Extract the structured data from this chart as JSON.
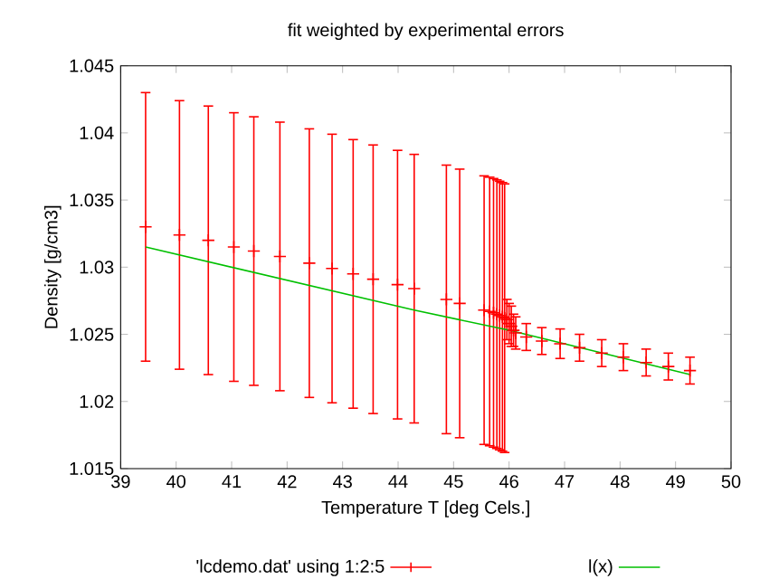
{
  "chart_data": {
    "type": "scatter",
    "title": "fit weighted by experimental errors",
    "xlabel": "Temperature T  [deg Cels.]",
    "ylabel": "Density [g/cm3]",
    "xlim": [
      39,
      50
    ],
    "xticks": [
      39,
      40,
      41,
      42,
      43,
      44,
      45,
      46,
      47,
      48,
      49,
      50
    ],
    "ylim": [
      1.015,
      1.045
    ],
    "yticks": [
      1.015,
      1.02,
      1.025,
      1.03,
      1.035,
      1.04,
      1.045
    ],
    "legend": "bottom",
    "grid": false,
    "series": [
      {
        "name": "'lcdemo.dat' using 1:2:5",
        "marker": "cross",
        "color": "#ff0000",
        "x": [
          39.45,
          40.06,
          40.58,
          41.04,
          41.4,
          41.87,
          42.4,
          42.81,
          43.19,
          43.55,
          43.99,
          44.29,
          44.87,
          45.11,
          45.55,
          45.65,
          45.72,
          45.78,
          45.83,
          45.88,
          45.92,
          45.96,
          46.0,
          46.04,
          46.08,
          46.12,
          46.31,
          46.59,
          46.92,
          47.27,
          47.67,
          48.06,
          48.47,
          48.87,
          49.26
        ],
        "values": [
          1.033,
          1.0324,
          1.032,
          1.0315,
          1.0312,
          1.0308,
          1.0303,
          1.0299,
          1.0295,
          1.0291,
          1.0287,
          1.0284,
          1.0276,
          1.0273,
          1.0268,
          1.0267,
          1.0266,
          1.0265,
          1.0264,
          1.0263,
          1.0262,
          1.0261,
          1.0258,
          1.0256,
          1.0253,
          1.0251,
          1.0248,
          1.0245,
          1.0243,
          1.024,
          1.0236,
          1.0233,
          1.0229,
          1.0226,
          1.0223
        ],
        "errors": [
          0.01,
          0.01,
          0.01,
          0.01,
          0.01,
          0.01,
          0.01,
          0.01,
          0.01,
          0.01,
          0.01,
          0.01,
          0.01,
          0.01,
          0.01,
          0.01,
          0.01,
          0.01,
          0.01,
          0.01,
          0.01,
          0.0015,
          0.0015,
          0.0015,
          0.0012,
          0.0012,
          0.001,
          0.001,
          0.0011,
          0.001,
          0.001,
          0.001,
          0.001,
          0.001,
          0.001
        ]
      },
      {
        "name": "l(x)",
        "type": "line",
        "color": "#00c000",
        "x": [
          39.45,
          44.29,
          46.0,
          49.26
        ],
        "values": [
          1.0315,
          1.0268,
          1.0253,
          1.022
        ]
      }
    ]
  }
}
